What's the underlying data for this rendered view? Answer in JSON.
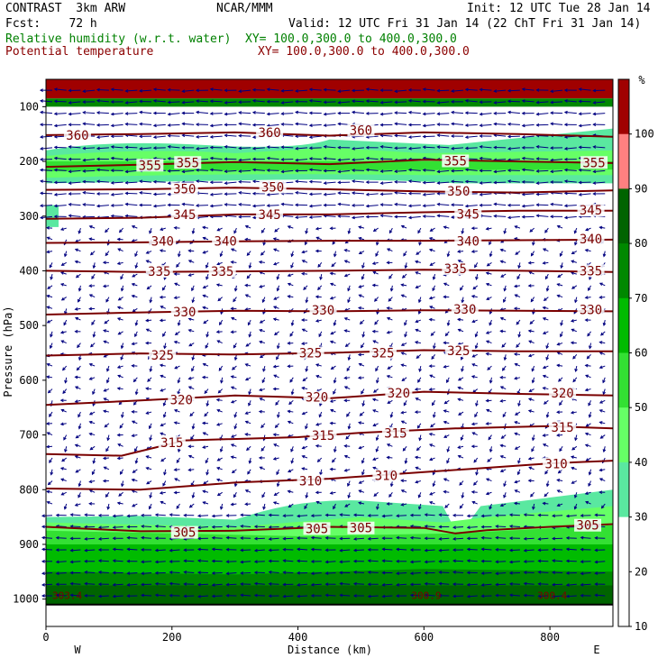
{
  "header": {
    "program": "CONTRAST  3km ARW",
    "forecast": "Fcst:    72 h",
    "model": "NCAR/MMM",
    "init": "Init: 12 UTC Tue 28 Jan 14",
    "valid": "Valid: 12 UTC Fri 31 Jan 14 (22 ChT Fri 31 Jan 14)",
    "field1_name": "Relative humidity (w.r.t. water)",
    "field1_xy": "XY= 100.0,300.0 to 400.0,300.0",
    "field2_name": "Potential temperature",
    "field2_xy": "XY= 100.0,300.0 to 400.0,300.0"
  },
  "colors": {
    "rh_text": "#008000",
    "theta_text": "#8b0000",
    "theta_line": "#7a0000",
    "wind": "#000080",
    "rh_fills": [
      "#ffffff",
      "#5ae8a0",
      "#66ff66",
      "#33e033",
      "#00bb00",
      "#008800",
      "#006400",
      "#ff8080",
      "#a00000"
    ]
  },
  "chart_data": {
    "type": "heatmap",
    "xlabel": "Distance (km)",
    "ylabel": "Pressure (hPa)",
    "xlim": [
      0,
      900
    ],
    "ylim_hpa": [
      1050,
      50
    ],
    "x_ticks": [
      "0",
      "200",
      "400",
      "600",
      "800"
    ],
    "y_ticks": [
      "100",
      "200",
      "300",
      "400",
      "500",
      "600",
      "700",
      "800",
      "900",
      "1000"
    ],
    "x_end_labels": {
      "left": "W",
      "right": "E"
    },
    "colorbar": {
      "unit": "%",
      "labels": [
        "100",
        "90",
        "80",
        "70",
        "60",
        "50",
        "40",
        "30",
        "20",
        "10"
      ]
    },
    "theta_contours": [
      {
        "theta": 305,
        "points": [
          [
            0,
            868
          ],
          [
            150,
            876
          ],
          [
            300,
            875
          ],
          [
            450,
            868
          ],
          [
            600,
            870
          ],
          [
            650,
            880
          ],
          [
            700,
            874
          ],
          [
            800,
            868
          ],
          [
            900,
            863
          ]
        ],
        "labels": [
          [
            220,
            878
          ],
          [
            430,
            871
          ],
          [
            500,
            870
          ],
          [
            860,
            865
          ]
        ]
      },
      {
        "theta": 310,
        "points": [
          [
            0,
            798
          ],
          [
            150,
            800
          ],
          [
            300,
            787
          ],
          [
            450,
            780
          ],
          [
            600,
            768
          ],
          [
            700,
            760
          ],
          [
            800,
            752
          ],
          [
            900,
            747
          ]
        ],
        "labels": [
          [
            420,
            784
          ],
          [
            540,
            774
          ],
          [
            810,
            753
          ]
        ]
      },
      {
        "theta": 315,
        "points": [
          [
            0,
            735
          ],
          [
            120,
            738
          ],
          [
            220,
            710
          ],
          [
            400,
            704
          ],
          [
            500,
            696
          ],
          [
            650,
            688
          ],
          [
            800,
            684
          ],
          [
            900,
            688
          ]
        ],
        "labels": [
          [
            200,
            714
          ],
          [
            440,
            701
          ],
          [
            555,
            697
          ],
          [
            820,
            686
          ]
        ]
      },
      {
        "theta": 320,
        "points": [
          [
            0,
            645
          ],
          [
            150,
            637
          ],
          [
            300,
            628
          ],
          [
            450,
            633
          ],
          [
            600,
            621
          ],
          [
            750,
            625
          ],
          [
            900,
            628
          ]
        ],
        "labels": [
          [
            215,
            636
          ],
          [
            430,
            631
          ],
          [
            560,
            623
          ],
          [
            820,
            623
          ]
        ]
      },
      {
        "theta": 325,
        "points": [
          [
            0,
            555
          ],
          [
            150,
            551
          ],
          [
            300,
            553
          ],
          [
            450,
            550
          ],
          [
            600,
            545
          ],
          [
            750,
            547
          ],
          [
            900,
            547
          ]
        ],
        "labels": [
          [
            185,
            554
          ],
          [
            420,
            550
          ],
          [
            535,
            550
          ],
          [
            655,
            546
          ]
        ]
      },
      {
        "theta": 330,
        "points": [
          [
            0,
            480
          ],
          [
            150,
            476
          ],
          [
            300,
            473
          ],
          [
            450,
            474
          ],
          [
            600,
            472
          ],
          [
            750,
            473
          ],
          [
            900,
            474
          ]
        ],
        "labels": [
          [
            220,
            475
          ],
          [
            440,
            472
          ],
          [
            665,
            470
          ],
          [
            865,
            471
          ]
        ]
      },
      {
        "theta": 335,
        "points": [
          [
            0,
            400
          ],
          [
            150,
            402
          ],
          [
            300,
            401
          ],
          [
            450,
            400
          ],
          [
            600,
            398
          ],
          [
            750,
            400
          ],
          [
            900,
            402
          ]
        ],
        "labels": [
          [
            180,
            401
          ],
          [
            280,
            401
          ],
          [
            650,
            396
          ],
          [
            865,
            400
          ]
        ]
      },
      {
        "theta": 340,
        "points": [
          [
            0,
            349
          ],
          [
            150,
            348
          ],
          [
            300,
            346
          ],
          [
            450,
            345
          ],
          [
            600,
            345
          ],
          [
            750,
            344
          ],
          [
            900,
            343
          ]
        ],
        "labels": [
          [
            185,
            346
          ],
          [
            285,
            346
          ],
          [
            670,
            346
          ],
          [
            865,
            342
          ]
        ]
      },
      {
        "theta": 345,
        "points": [
          [
            0,
            305
          ],
          [
            150,
            303
          ],
          [
            300,
            297
          ],
          [
            450,
            297
          ],
          [
            600,
            293
          ],
          [
            750,
            290
          ],
          [
            900,
            290
          ]
        ],
        "labels": [
          [
            220,
            297
          ],
          [
            355,
            297
          ],
          [
            670,
            296
          ],
          [
            865,
            289
          ]
        ]
      },
      {
        "theta": 350,
        "points": [
          [
            0,
            252
          ],
          [
            150,
            251
          ],
          [
            300,
            248
          ],
          [
            450,
            251
          ],
          [
            600,
            255
          ],
          [
            750,
            257
          ],
          [
            900,
            253
          ]
        ],
        "labels": [
          [
            220,
            250
          ],
          [
            360,
            247
          ],
          [
            655,
            254
          ]
        ]
      },
      {
        "theta": 355,
        "points": [
          [
            0,
            210
          ],
          [
            150,
            206
          ],
          [
            300,
            201
          ],
          [
            450,
            205
          ],
          [
            600,
            197
          ],
          [
            750,
            200
          ],
          [
            900,
            203
          ]
        ],
        "labels": [
          [
            165,
            207
          ],
          [
            225,
            202
          ],
          [
            650,
            199
          ],
          [
            870,
            202
          ]
        ]
      },
      {
        "theta": 360,
        "points": [
          [
            0,
            152
          ],
          [
            150,
            150
          ],
          [
            300,
            147
          ],
          [
            450,
            153
          ],
          [
            600,
            147
          ],
          [
            750,
            150
          ],
          [
            900,
            155
          ]
        ],
        "labels": [
          [
            50,
            152
          ],
          [
            355,
            147
          ],
          [
            500,
            143
          ]
        ]
      }
    ]
  },
  "bottom_values": [
    "303.4",
    "300.9",
    "300.4"
  ]
}
